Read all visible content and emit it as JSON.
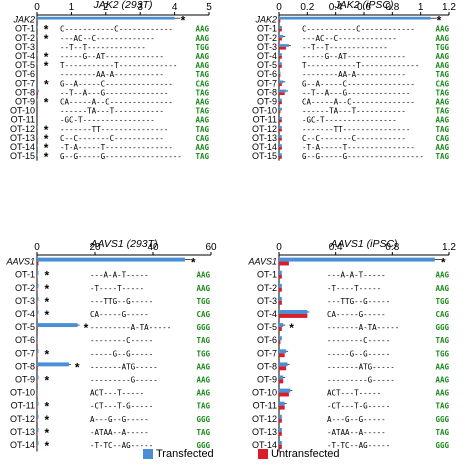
{
  "colors": {
    "transfected": "#4a8fd6",
    "untransfected": "#d81e2c",
    "pam": "#1c8a1c",
    "axis": "#000000"
  },
  "legend": {
    "transfected": "Transfected",
    "untransfected": "Untransfected"
  },
  "chart_data": [
    {
      "type": "bar",
      "orientation": "horizontal",
      "title": "JAK2 (293T)",
      "xlim": [
        0,
        5
      ],
      "ticks": [
        0,
        1,
        2,
        3,
        4,
        5
      ],
      "categories": [
        "JAK2",
        "OT-1",
        "OT-2",
        "OT-3",
        "OT-4",
        "OT-5",
        "OT-6",
        "OT-7",
        "OT-8",
        "OT-9",
        "OT-10",
        "OT-11",
        "OT-12",
        "OT-13",
        "OT-14",
        "OT-15"
      ],
      "series": [
        {
          "name": "Transfected",
          "values": [
            4.0,
            0.02,
            0.02,
            0.0,
            0.02,
            0.02,
            0.0,
            0.03,
            0.05,
            0.02,
            0.0,
            0.0,
            0.02,
            0.02,
            0.02,
            0.02
          ]
        },
        {
          "name": "Untransfected",
          "values": [
            0.0,
            0.0,
            0.0,
            0.0,
            0.0,
            0.0,
            0.0,
            0.0,
            0.03,
            0.0,
            0.0,
            0.0,
            0.0,
            0.0,
            0.0,
            0.0
          ]
        }
      ],
      "significant": [
        true,
        true,
        true,
        false,
        true,
        true,
        false,
        true,
        false,
        true,
        false,
        false,
        true,
        true,
        true,
        true
      ],
      "sequences": [
        "",
        "C-----------C------------",
        "---AC--C-------------",
        "--T--T-------------",
        "-----G--AT-------------",
        "T-----------T-------------",
        "--------AA-A-----------",
        "G--A-----C---------------",
        "--T--A---G--------------",
        "CA-----A--C--------------",
        "------TA---T-----------",
        "-GC-T----------------",
        "-------TT---------------",
        "C--C-------C-----------",
        "-T-A-----T---------------",
        "G--G-----G-----------------"
      ],
      "pam": [
        "",
        "AAG",
        "AAG",
        "TGG",
        "AAG",
        "AAG",
        "TAG",
        "CAG",
        "TAG",
        "AAG",
        "TAG",
        "AAG",
        "TAG",
        "CAG",
        "AAG",
        "TAG"
      ]
    },
    {
      "type": "bar",
      "orientation": "horizontal",
      "title": "JAK2 (iPSC)",
      "xlim": [
        0,
        1.2
      ],
      "ticks": [
        0,
        0.2,
        0.4,
        0.6,
        0.8,
        1,
        1.2
      ],
      "categories": [
        "JAK2",
        "OT-1",
        "OT-2",
        "OT-3",
        "OT-4",
        "OT-5",
        "OT-6",
        "OT-7",
        "OT-8",
        "OT-9",
        "OT-10",
        "OT-11",
        "OT-12",
        "OT-13",
        "OT-14",
        "OT-15"
      ],
      "series": [
        {
          "name": "Transfected",
          "values": [
            1.07,
            0.02,
            0.03,
            0.07,
            0.02,
            0.02,
            0.01,
            0.03,
            0.05,
            0.02,
            0.02,
            0.02,
            0.02,
            0.02,
            0.02,
            0.02
          ]
        },
        {
          "name": "Untransfected",
          "values": [
            0.01,
            0.02,
            0.02,
            0.05,
            0.02,
            0.02,
            0.01,
            0.02,
            0.04,
            0.02,
            0.01,
            0.02,
            0.02,
            0.02,
            0.02,
            0.02
          ]
        }
      ],
      "significant": [
        true,
        false,
        false,
        false,
        false,
        false,
        false,
        false,
        false,
        false,
        false,
        false,
        false,
        false,
        false,
        false
      ],
      "sequences": [
        "",
        "C-----------C------------",
        "---AC--C-------------",
        "--T--T-------------",
        "-----G--AT-------------",
        "T-----------T-------------",
        "--------AA-A-----------",
        "G--A-----C---------------",
        "--T--A---G--------------",
        "CA-----A--C--------------",
        "------TA---T-----------",
        "-GC-T----------------",
        "-------TT---------------",
        "C--C-------C-----------",
        "-T-A-----T---------------",
        "G--G-----G-----------------"
      ],
      "pam": [
        "",
        "AAG",
        "AAG",
        "TGG",
        "AAG",
        "AAG",
        "TAG",
        "CAG",
        "TAG",
        "AAG",
        "TAG",
        "AAG",
        "TAG",
        "CAG",
        "AAG",
        "TAG"
      ]
    },
    {
      "type": "bar",
      "orientation": "horizontal",
      "title": "AAVS1 (293T)",
      "xlim": [
        0,
        60
      ],
      "ticks": [
        0,
        20,
        40,
        60
      ],
      "categories": [
        "AAVS1",
        "OT-1",
        "OT-2",
        "OT-3",
        "OT-4",
        "OT-5",
        "OT-6",
        "OT-7",
        "OT-8",
        "OT-9",
        "OT-10",
        "OT-11",
        "OT-12",
        "OT-13",
        "OT-14"
      ],
      "series": [
        {
          "name": "Transfected",
          "values": [
            51.0,
            0.5,
            0.5,
            0.5,
            0.5,
            14.0,
            0.3,
            0.5,
            11.0,
            0.5,
            0.3,
            0.5,
            0.5,
            0.5,
            0.5
          ]
        },
        {
          "name": "Untransfected",
          "values": [
            0.5,
            0.2,
            0.2,
            0.2,
            0.2,
            0.3,
            0.2,
            0.2,
            0.3,
            0.2,
            0.2,
            0.2,
            0.2,
            0.2,
            0.2
          ]
        }
      ],
      "significant": [
        true,
        true,
        true,
        true,
        true,
        true,
        false,
        true,
        true,
        true,
        false,
        true,
        true,
        true,
        true
      ],
      "sequences": [
        "",
        "---A-A-T-----",
        "-T----T-----",
        "---TTG--G-----",
        "CA-----G-----",
        "---------A-TA-----",
        "--------C-----",
        "-----G--G-----",
        "-------ATG-----",
        "---------G-----",
        "ACT---T-----",
        "-CT---T-G-----",
        "A---G--G-----",
        "-ATAA--A-----",
        "-T-TC--AG-----"
      ],
      "pam": [
        "",
        "AAG",
        "AAG",
        "TGG",
        "CAG",
        "GGG",
        "TAG",
        "TGG",
        "AAG",
        "AAG",
        "AAG",
        "TAG",
        "GGG",
        "TAG",
        "GGG"
      ]
    },
    {
      "type": "bar",
      "orientation": "horizontal",
      "title": "AAVS1 (iPSC)",
      "xlim": [
        0,
        1.2
      ],
      "ticks": [
        0,
        0.4,
        0.8,
        1.2
      ],
      "categories": [
        "AAVS1",
        "OT-1",
        "OT-2",
        "OT-3",
        "OT-4",
        "OT-5",
        "OT-6",
        "OT-7",
        "OT-8",
        "OT-9",
        "OT-10",
        "OT-11",
        "OT-12",
        "OT-13",
        "OT-14"
      ],
      "series": [
        {
          "name": "Transfected",
          "values": [
            1.1,
            0.02,
            0.02,
            0.02,
            0.2,
            0.03,
            0.02,
            0.05,
            0.06,
            0.03,
            0.08,
            0.04,
            0.02,
            0.02,
            0.02
          ]
        },
        {
          "name": "Untransfected",
          "values": [
            0.07,
            0.02,
            0.02,
            0.02,
            0.2,
            0.02,
            0.01,
            0.04,
            0.05,
            0.03,
            0.07,
            0.04,
            0.02,
            0.02,
            0.02
          ]
        }
      ],
      "significant": [
        true,
        false,
        false,
        false,
        false,
        true,
        false,
        false,
        false,
        false,
        false,
        false,
        false,
        false,
        false
      ],
      "sequences": [
        "",
        "---A-A-T-----",
        "-T----T-----",
        "---TTG--G-----",
        "CA-----G-----",
        "-------A-TA-----",
        "--------C-----",
        "-----G--G-----",
        "-------ATG-----",
        "---------G-----",
        "ACT---T-----",
        "-CT---T-G-----",
        "A---G--G-----",
        "-ATAA--A-----",
        "-T-TC--AG-----"
      ],
      "pam": [
        "",
        "AAG",
        "AAG",
        "TGG",
        "CAG",
        "GGG",
        "TAG",
        "TGG",
        "AAG",
        "AAG",
        "AAG",
        "TAG",
        "GGG",
        "TAG",
        "GGG"
      ]
    }
  ]
}
